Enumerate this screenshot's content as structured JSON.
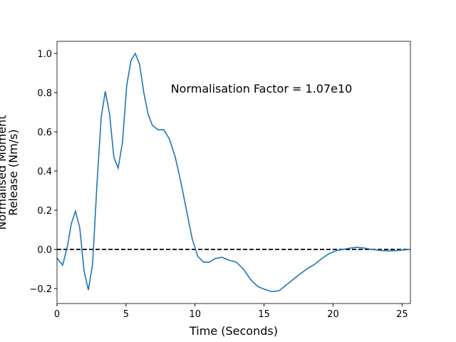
{
  "chart_data": {
    "type": "line",
    "xlabel": "Time (Seconds)",
    "ylabel": [
      "Normalised Moment",
      "Release (Nm/s)"
    ],
    "annotation": "Normalisation Factor = 1.07e10",
    "reference_line": 0,
    "x": [
      0,
      0.41,
      0.77,
      1.03,
      1.34,
      1.65,
      1.96,
      2.27,
      2.58,
      2.89,
      3.2,
      3.5,
      3.81,
      4.12,
      4.43,
      4.74,
      5.05,
      5.36,
      5.67,
      5.98,
      6.29,
      6.6,
      6.91,
      7.32,
      7.73,
      8.14,
      8.56,
      8.97,
      9.38,
      9.79,
      10.2,
      10.62,
      11.03,
      11.44,
      11.96,
      12.47,
      12.99,
      13.5,
      14.02,
      14.54,
      15.05,
      15.57,
      16.08,
      16.6,
      17.11,
      17.63,
      18.14,
      18.66,
      19.18,
      19.69,
      20.21,
      20.72,
      21.24,
      21.75,
      22.27,
      22.78,
      23.3,
      23.81,
      24.33,
      24.85,
      25.57
    ],
    "series": [
      {
        "color": "#1f77b4",
        "values": [
          -0.044,
          -0.08,
          0.02,
          0.13,
          0.196,
          0.11,
          -0.11,
          -0.207,
          -0.073,
          0.327,
          0.673,
          0.807,
          0.69,
          0.47,
          0.415,
          0.545,
          0.836,
          0.964,
          1.0,
          0.945,
          0.8,
          0.69,
          0.633,
          0.611,
          0.611,
          0.564,
          0.473,
          0.345,
          0.2,
          0.055,
          -0.036,
          -0.065,
          -0.065,
          -0.047,
          -0.04,
          -0.055,
          -0.065,
          -0.1,
          -0.153,
          -0.189,
          -0.204,
          -0.215,
          -0.211,
          -0.182,
          -0.153,
          -0.124,
          -0.098,
          -0.076,
          -0.047,
          -0.022,
          -0.007,
          0,
          0.007,
          0.011,
          0.007,
          0,
          -0.004,
          -0.007,
          -0.007,
          -0.004,
          0
        ]
      }
    ],
    "xlim": [
      0,
      25.6
    ],
    "ylim": [
      -0.276,
      1.062
    ],
    "xticks": [
      0,
      5,
      10,
      15,
      20,
      25
    ],
    "yticks": [
      {
        "value": -0.2,
        "label": "−0.2"
      },
      {
        "value": 0,
        "label": "0.0"
      },
      {
        "value": 0.2,
        "label": "0.2"
      },
      {
        "value": 0.4,
        "label": "0.4"
      },
      {
        "value": 0.6,
        "label": "0.6"
      },
      {
        "value": 0.8,
        "label": "0.8"
      },
      {
        "value": 1.0,
        "label": "1.0"
      }
    ]
  }
}
